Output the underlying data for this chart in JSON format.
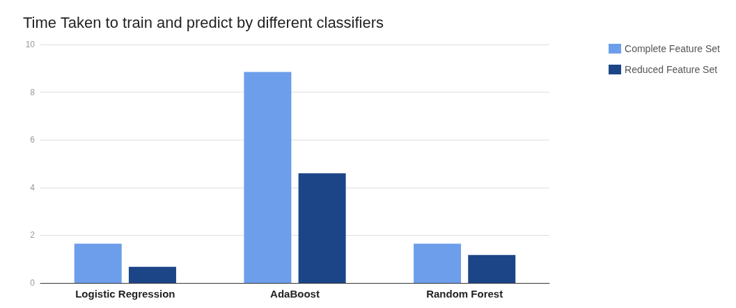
{
  "chart_data": {
    "type": "bar",
    "title": "Time Taken to train and predict by different classifiers",
    "categories": [
      "Logistic Regression",
      "AdaBoost",
      "Random Forest"
    ],
    "series": [
      {
        "name": "Complete Feature Set",
        "color": "#6d9eeb",
        "values": [
          1.65,
          8.85,
          1.65
        ]
      },
      {
        "name": "Reduced Feature Set",
        "color": "#1c4587",
        "values": [
          0.68,
          4.6,
          1.17
        ]
      }
    ],
    "ylim": [
      0,
      10
    ],
    "yticks": [
      0,
      2,
      4,
      6,
      8,
      10
    ],
    "grid": "y",
    "legend": "top right"
  }
}
